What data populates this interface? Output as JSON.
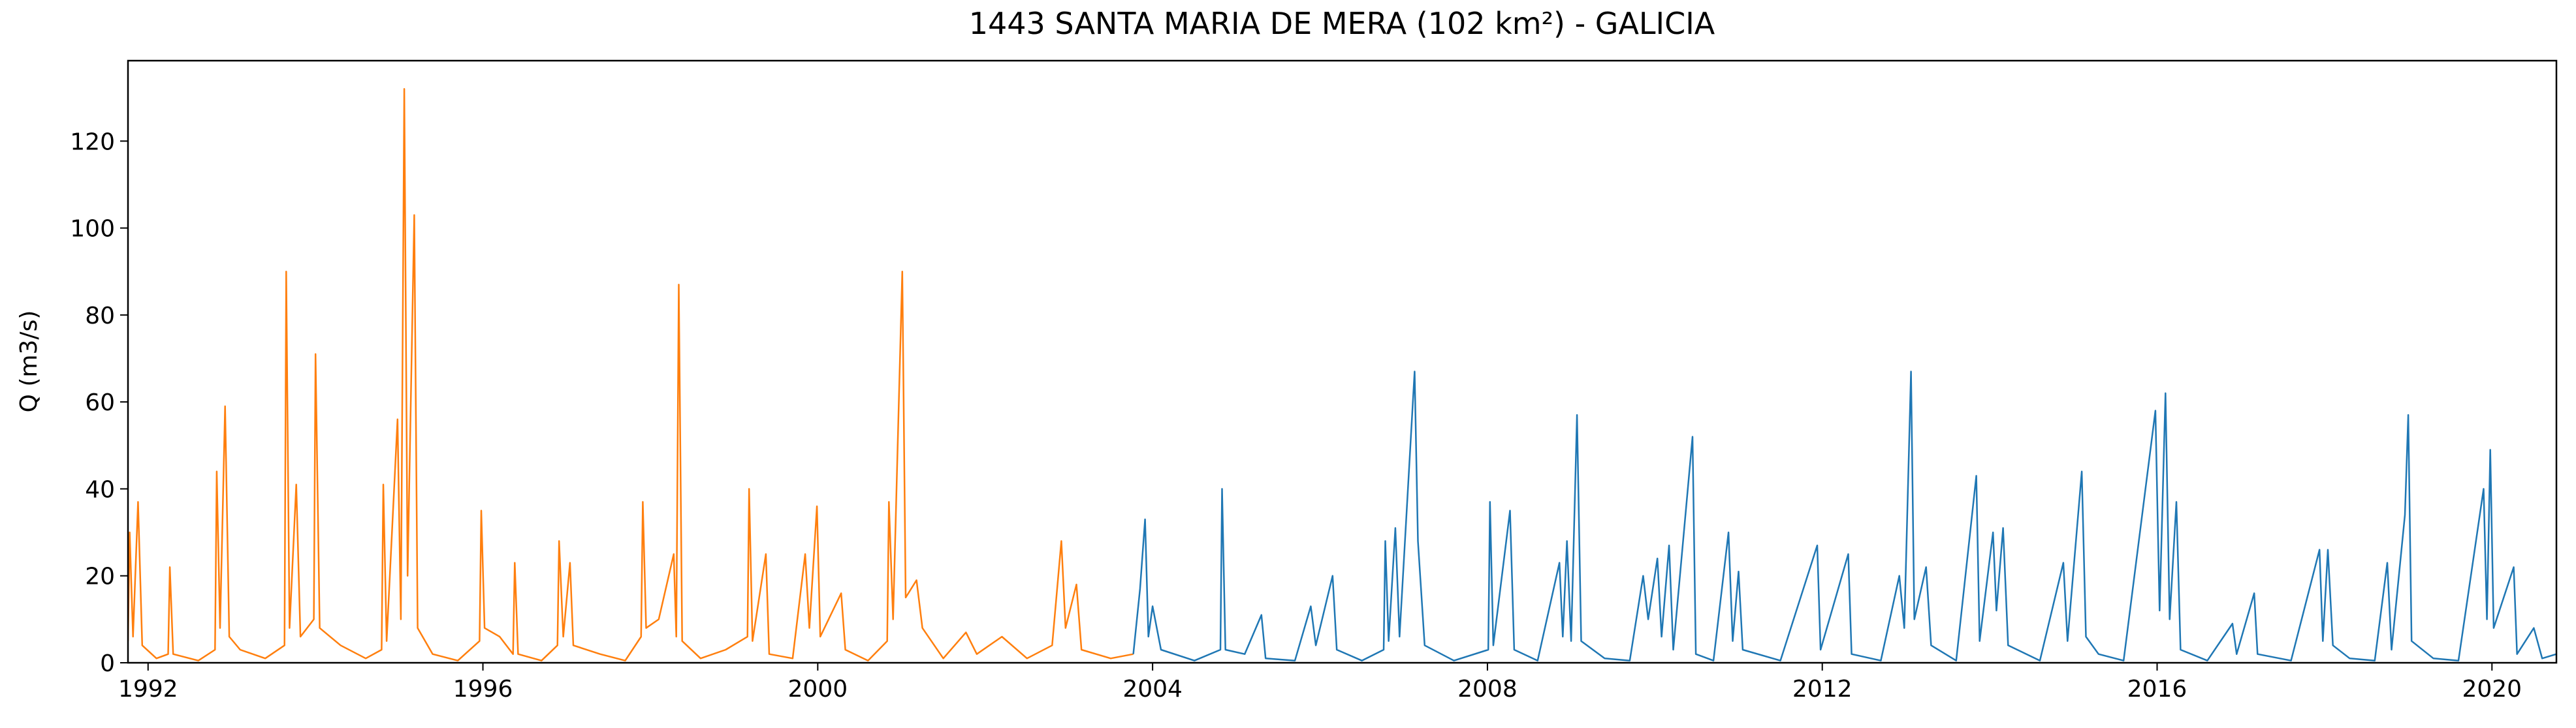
{
  "chart_data": {
    "type": "line",
    "title": "1443 SANTA MARIA DE MERA (102 km²) - GALICIA",
    "ylabel": "Q (m3/s)",
    "xlim": [
      1991.76,
      2020.77
    ],
    "xticks": [
      1992,
      1996,
      2000,
      2004,
      2008,
      2012,
      2016,
      2020
    ],
    "ylim": [
      0,
      138.5
    ],
    "yticks": [
      0,
      20,
      40,
      60,
      80,
      100,
      120
    ],
    "grid": false,
    "series": [
      {
        "color": "#ff7f0e",
        "x": [
          1991.76,
          1991.78,
          1991.82,
          1991.88,
          1991.93,
          1992.1,
          1992.24,
          1992.26,
          1992.3,
          1992.6,
          1992.8,
          1992.82,
          1992.86,
          1992.92,
          1992.97,
          1993.1,
          1993.4,
          1993.63,
          1993.65,
          1993.69,
          1993.77,
          1993.82,
          1993.98,
          1994.0,
          1994.05,
          1994.3,
          1994.6,
          1994.79,
          1994.81,
          1994.85,
          1994.98,
          1995.02,
          1995.06,
          1995.1,
          1995.18,
          1995.22,
          1995.4,
          1995.7,
          1995.96,
          1995.98,
          1996.02,
          1996.2,
          1996.36,
          1996.38,
          1996.42,
          1996.7,
          1996.89,
          1996.91,
          1996.96,
          1997.04,
          1997.08,
          1997.4,
          1997.7,
          1997.89,
          1997.91,
          1997.95,
          1998.1,
          1998.28,
          1998.31,
          1998.34,
          1998.38,
          1998.6,
          1998.9,
          1999.16,
          1999.18,
          1999.22,
          1999.38,
          1999.42,
          1999.7,
          1999.85,
          1999.9,
          1999.99,
          2000.03,
          2000.28,
          2000.33,
          2000.6,
          2000.83,
          2000.85,
          2000.9,
          2001.01,
          2001.05,
          2001.18,
          2001.25,
          2001.5,
          2001.77,
          2001.9,
          2002.2,
          2002.5,
          2002.8,
          2002.91,
          2002.96,
          2003.09,
          2003.15,
          2003.5,
          2003.77
        ],
        "values": [
          5,
          30,
          6,
          37,
          4,
          1,
          2,
          22,
          2,
          0.5,
          3,
          44,
          8,
          59,
          6,
          3,
          1,
          4,
          90,
          8,
          41,
          6,
          10,
          71,
          8,
          4,
          1,
          3,
          41,
          5,
          56,
          10,
          132,
          20,
          103,
          8,
          2,
          0.5,
          5,
          35,
          8,
          6,
          2,
          23,
          2,
          0.5,
          4,
          28,
          6,
          23,
          4,
          2,
          0.5,
          6,
          37,
          8,
          10,
          25,
          6,
          87,
          5,
          1,
          3,
          6,
          40,
          5,
          25,
          2,
          1,
          25,
          8,
          36,
          6,
          16,
          3,
          0.5,
          5,
          37,
          10,
          90,
          15,
          19,
          8,
          1,
          7,
          2,
          6,
          1,
          4,
          28,
          8,
          18,
          3,
          1,
          2
        ]
      },
      {
        "color": "#1f77b4",
        "x": [
          2003.77,
          2003.85,
          2003.91,
          2003.95,
          2004.0,
          2004.1,
          2004.5,
          2004.81,
          2004.83,
          2004.87,
          2005.1,
          2005.3,
          2005.35,
          2005.7,
          2005.89,
          2005.95,
          2006.15,
          2006.2,
          2006.5,
          2006.76,
          2006.78,
          2006.82,
          2006.9,
          2006.95,
          2007.13,
          2007.17,
          2007.25,
          2007.6,
          2008.01,
          2008.03,
          2008.07,
          2008.27,
          2008.32,
          2008.6,
          2008.86,
          2008.9,
          2008.95,
          2009.0,
          2009.07,
          2009.12,
          2009.4,
          2009.7,
          2009.86,
          2009.92,
          2010.03,
          2010.08,
          2010.17,
          2010.22,
          2010.45,
          2010.49,
          2010.7,
          2010.88,
          2010.93,
          2011.0,
          2011.05,
          2011.5,
          2011.94,
          2011.98,
          2012.31,
          2012.35,
          2012.7,
          2012.92,
          2012.98,
          2013.06,
          2013.1,
          2013.24,
          2013.3,
          2013.6,
          2013.84,
          2013.88,
          2014.04,
          2014.08,
          2014.16,
          2014.22,
          2014.6,
          2014.88,
          2014.93,
          2015.1,
          2015.15,
          2015.3,
          2015.6,
          2015.98,
          2016.03,
          2016.1,
          2016.15,
          2016.23,
          2016.28,
          2016.6,
          2016.9,
          2016.95,
          2017.16,
          2017.2,
          2017.6,
          2017.94,
          2017.98,
          2018.04,
          2018.1,
          2018.3,
          2018.6,
          2018.75,
          2018.8,
          2018.96,
          2019.0,
          2019.04,
          2019.3,
          2019.6,
          2019.9,
          2019.94,
          2019.98,
          2020.02,
          2020.26,
          2020.3,
          2020.5,
          2020.6,
          2020.77
        ],
        "values": [
          2,
          17,
          33,
          6,
          13,
          3,
          0.5,
          3,
          40,
          3,
          2,
          11,
          1,
          0.5,
          13,
          4,
          20,
          3,
          0.5,
          3,
          28,
          5,
          31,
          6,
          67,
          28,
          4,
          0.5,
          3,
          37,
          4,
          35,
          3,
          0.5,
          23,
          6,
          28,
          5,
          57,
          5,
          1,
          0.5,
          20,
          10,
          24,
          6,
          27,
          3,
          52,
          2,
          0.5,
          30,
          5,
          21,
          3,
          0.5,
          27,
          3,
          25,
          2,
          0.5,
          20,
          8,
          67,
          10,
          22,
          4,
          0.5,
          43,
          5,
          30,
          12,
          31,
          4,
          0.5,
          23,
          5,
          44,
          6,
          2,
          0.5,
          58,
          12,
          62,
          10,
          37,
          3,
          0.5,
          9,
          2,
          16,
          2,
          0.5,
          26,
          5,
          26,
          4,
          1,
          0.5,
          23,
          3,
          34,
          57,
          5,
          1,
          0.5,
          40,
          10,
          49,
          8,
          22,
          2,
          8,
          1,
          2
        ]
      }
    ]
  }
}
